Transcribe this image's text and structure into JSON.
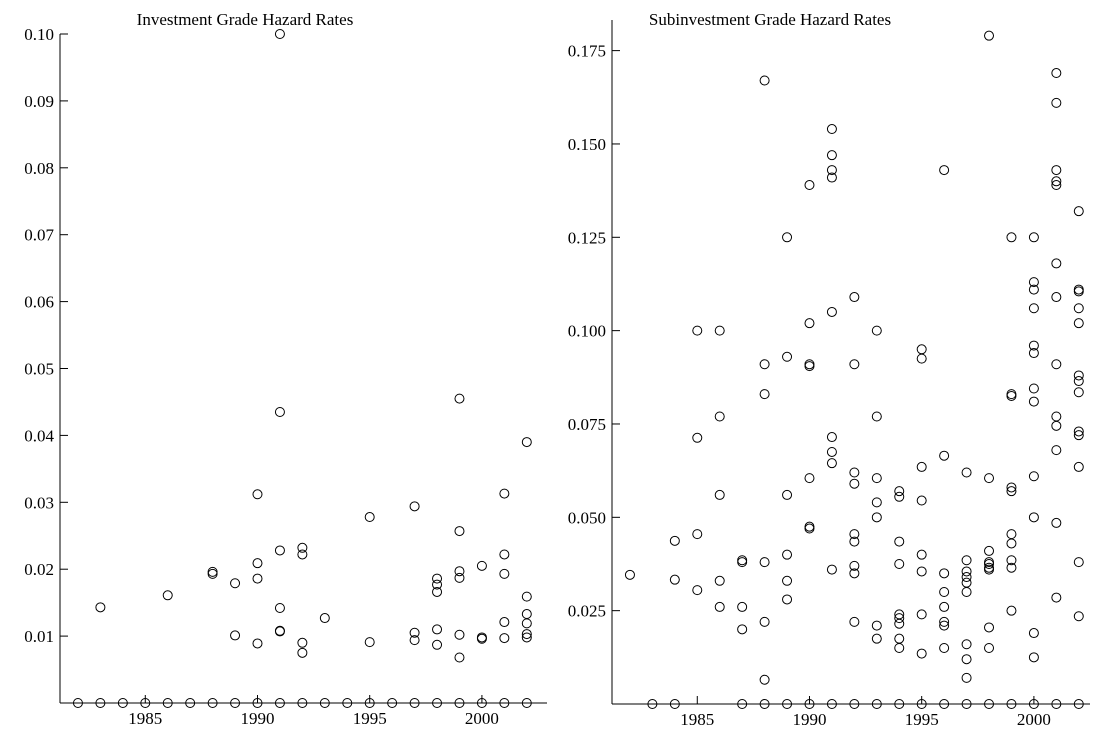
{
  "chart_data": [
    {
      "type": "scatter",
      "title": "Investment Grade Hazard Rates",
      "color": "#000000",
      "grid": false,
      "xlim": [
        1981.2,
        2002.9
      ],
      "ylim": [
        0,
        0.1
      ],
      "xticks": [
        1985,
        1990,
        1995,
        2000
      ],
      "yticks": [
        0.01,
        0.02,
        0.03,
        0.04,
        0.05,
        0.06,
        0.07,
        0.08,
        0.09,
        {
          "value": 0.1,
          "label": "0.10"
        }
      ],
      "x": [
        1982,
        1983,
        1983,
        1984,
        1985,
        1986,
        1986,
        1987,
        1988,
        1988,
        1988,
        1989,
        1989,
        1989,
        1990,
        1990,
        1990,
        1990,
        1990,
        1991,
        1991,
        1991,
        1991,
        1991,
        1991,
        1991,
        1992,
        1992,
        1992,
        1992,
        1992,
        1993,
        1993,
        1994,
        1995,
        1995,
        1995,
        1996,
        1997,
        1997,
        1997,
        1997,
        1998,
        1998,
        1998,
        1998,
        1998,
        1998,
        1999,
        1999,
        1999,
        1999,
        1999,
        1999,
        1999,
        2000,
        2000,
        2000,
        2000,
        2001,
        2001,
        2001,
        2001,
        2001,
        2001,
        2002,
        2002,
        2002,
        2002,
        2002,
        2002,
        2002
      ],
      "y": [
        0,
        0.0143,
        0,
        0,
        0,
        0.0161,
        0,
        0,
        0.0196,
        0.0193,
        0,
        0.0179,
        0.0101,
        0,
        0.0312,
        0.0209,
        0.0186,
        0.0089,
        0,
        0.1,
        0.0435,
        0.0228,
        0.0142,
        0.0108,
        0.0107,
        0,
        0.0232,
        0.0222,
        0.009,
        0.0075,
        0,
        0.0127,
        0,
        0,
        0.0278,
        0.0091,
        0,
        0,
        0.0294,
        0.0105,
        0.0094,
        0,
        0.0186,
        0.0177,
        0.0166,
        0.011,
        0.0087,
        0,
        0.0455,
        0.0257,
        0.0197,
        0.0187,
        0.0102,
        0.0068,
        0,
        0.0205,
        0.0098,
        0.0096,
        0,
        0.0313,
        0.0222,
        0.0193,
        0.0121,
        0.0097,
        0,
        0.039,
        0.0159,
        0.0133,
        0.0119,
        0.0103,
        0.0098,
        0
      ]
    },
    {
      "type": "scatter",
      "title": "Subinvestment Grade Hazard Rates",
      "color": "#000000",
      "grid": false,
      "xlim": [
        1981.2,
        2002.5
      ],
      "ylim": [
        0,
        0.1832
      ],
      "xticks": [
        1985,
        1990,
        1995,
        2000
      ],
      "yticks": [
        0.025,
        {
          "value": 0.05,
          "label": "0.050"
        },
        0.075,
        {
          "value": 0.1,
          "label": "0.100"
        },
        0.125,
        {
          "value": 0.15,
          "label": "0.150"
        },
        0.175
      ],
      "x": [
        1982,
        1983,
        1984,
        1984,
        1984,
        1985,
        1985,
        1985,
        1985,
        1986,
        1986,
        1986,
        1986,
        1986,
        1987,
        1987,
        1987,
        1987,
        1987,
        1988,
        1988,
        1988,
        1988,
        1988,
        1988,
        1988,
        1989,
        1989,
        1989,
        1989,
        1989,
        1989,
        1989,
        1990,
        1990,
        1990,
        1990,
        1990,
        1990,
        1990,
        1990,
        1991,
        1991,
        1991,
        1991,
        1991,
        1991,
        1991,
        1991,
        1991,
        1991,
        1992,
        1992,
        1992,
        1992,
        1992,
        1992,
        1992,
        1992,
        1992,
        1992,
        1993,
        1993,
        1993,
        1993,
        1993,
        1993,
        1993,
        1993,
        1994,
        1994,
        1994,
        1994,
        1994,
        1994,
        1994,
        1994,
        1994,
        1994,
        1995,
        1995,
        1995,
        1995,
        1995,
        1995,
        1995,
        1995,
        1995,
        1996,
        1996,
        1996,
        1996,
        1996,
        1996,
        1996,
        1996,
        1996,
        1997,
        1997,
        1997,
        1997,
        1997,
        1997,
        1997,
        1997,
        1997,
        1997,
        1998,
        1998,
        1998,
        1998,
        1998,
        1998,
        1998,
        1998,
        1998,
        1998,
        1999,
        1999,
        1999,
        1999,
        1999,
        1999,
        1999,
        1999,
        1999,
        1999,
        1999,
        2000,
        2000,
        2000,
        2000,
        2000,
        2000,
        2000,
        2000,
        2000,
        2000,
        2000,
        2000,
        2000,
        2001,
        2001,
        2001,
        2001,
        2001,
        2001,
        2001,
        2001,
        2001,
        2001,
        2001,
        2001,
        2001,
        2001,
        2002,
        2002,
        2002,
        2002,
        2002,
        2002,
        2002,
        2002,
        2002,
        2002,
        2002,
        2002,
        2002,
        2002
      ],
      "y": [
        0.0346,
        0,
        0.0437,
        0.0333,
        0,
        0.1,
        0.0713,
        0.0455,
        0.0305,
        0.1,
        0.077,
        0.056,
        0.033,
        0.026,
        0.0385,
        0.038,
        0.026,
        0.02,
        0,
        0.167,
        0.091,
        0.083,
        0.038,
        0.022,
        0.0065,
        0,
        0.125,
        0.093,
        0.056,
        0.04,
        0.033,
        0.028,
        0,
        0.139,
        0.102,
        0.091,
        0.0905,
        0.0605,
        0.0475,
        0.047,
        0,
        0.154,
        0.147,
        0.143,
        0.141,
        0.105,
        0.0715,
        0.0675,
        0.0645,
        0.036,
        0,
        0.109,
        0.091,
        0.062,
        0.059,
        0.0455,
        0.0435,
        0.037,
        0.035,
        0.022,
        0,
        0.1,
        0.077,
        0.0605,
        0.054,
        0.05,
        0.021,
        0.0175,
        0,
        0.057,
        0.0555,
        0.0435,
        0.0375,
        0.024,
        0.023,
        0.0215,
        0.0175,
        0.015,
        0,
        0.095,
        0.0925,
        0.0635,
        0.0545,
        0.04,
        0.0355,
        0.024,
        0.0135,
        0,
        0.143,
        0.0665,
        0.035,
        0.03,
        0.026,
        0.022,
        0.021,
        0.015,
        0,
        0.062,
        0.0385,
        0.0355,
        0.034,
        0.0325,
        0.03,
        0.016,
        0.012,
        0.007,
        0,
        0.179,
        0.0605,
        0.041,
        0.038,
        0.0375,
        0.0365,
        0.036,
        0.0205,
        0.015,
        0,
        0.125,
        0.083,
        0.0825,
        0.058,
        0.057,
        0.0455,
        0.043,
        0.0385,
        0.0365,
        0.025,
        0,
        0.125,
        0.113,
        0.111,
        0.106,
        0.096,
        0.094,
        0.0845,
        0.081,
        0.061,
        0.05,
        0.019,
        0.0125,
        0,
        0.169,
        0.161,
        0.143,
        0.14,
        0.139,
        0.118,
        0.109,
        0.091,
        0.077,
        0.0745,
        0.068,
        0.0485,
        0.0285,
        0,
        0.132,
        0.111,
        0.1105,
        0.106,
        0.102,
        0.088,
        0.0865,
        0.0835,
        0.073,
        0.072,
        0.0635,
        0.038,
        0.0235,
        0
      ]
    }
  ]
}
